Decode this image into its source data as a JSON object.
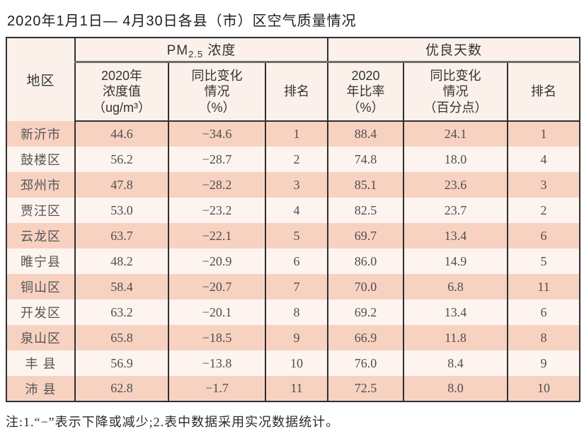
{
  "title": "2020年1月1日— 4月30日各县（市）区空气质量情况",
  "note": "注:1.“−”表示下降或减少;2.表中数据采用实况数据统计。",
  "table": {
    "header": {
      "region": "地区",
      "pm_group": {
        "prefix": "PM",
        "sub": "2.5",
        "suffix": " 浓度"
      },
      "good_group": "优良天数",
      "sub_cols": [
        "2020年\n浓度值\n（ug/m³）",
        "同比变化\n情况\n（%）",
        "排名",
        "2020\n年比率\n（%）",
        "同比变化\n情况\n（百分点）",
        "排名"
      ]
    },
    "rows": [
      [
        "新沂市",
        "44.6",
        "−34.6",
        "1",
        "88.4",
        "24.1",
        "1"
      ],
      [
        "鼓楼区",
        "56.2",
        "−28.7",
        "2",
        "74.8",
        "18.0",
        "4"
      ],
      [
        "邳州市",
        "47.8",
        "−28.2",
        "3",
        "85.1",
        "23.6",
        "3"
      ],
      [
        "贾汪区",
        "53.0",
        "−23.2",
        "4",
        "82.5",
        "23.7",
        "2"
      ],
      [
        "云龙区",
        "63.7",
        "−22.1",
        "5",
        "69.7",
        "13.4",
        "6"
      ],
      [
        "睢宁县",
        "48.2",
        "−20.9",
        "6",
        "86.0",
        "14.9",
        "5"
      ],
      [
        "铜山区",
        "58.4",
        "−20.7",
        "7",
        "70.0",
        "6.8",
        "11"
      ],
      [
        "开发区",
        "63.2",
        "−20.1",
        "8",
        "69.2",
        "13.4",
        "6"
      ],
      [
        "泉山区",
        "65.8",
        "−18.5",
        "9",
        "66.9",
        "11.8",
        "8"
      ],
      [
        "丰 县",
        "56.9",
        "−13.8",
        "10",
        "76.0",
        "8.4",
        "9"
      ],
      [
        "沛 县",
        "62.8",
        "−1.7",
        "11",
        "72.5",
        "8.0",
        "10"
      ]
    ],
    "colors": {
      "row_pink": "#f8d2c1",
      "row_light": "#fdf4ef",
      "header_bg": "#fbf1ea",
      "border": "#2f2f2f",
      "group_divider": "#6d6d6d"
    }
  }
}
